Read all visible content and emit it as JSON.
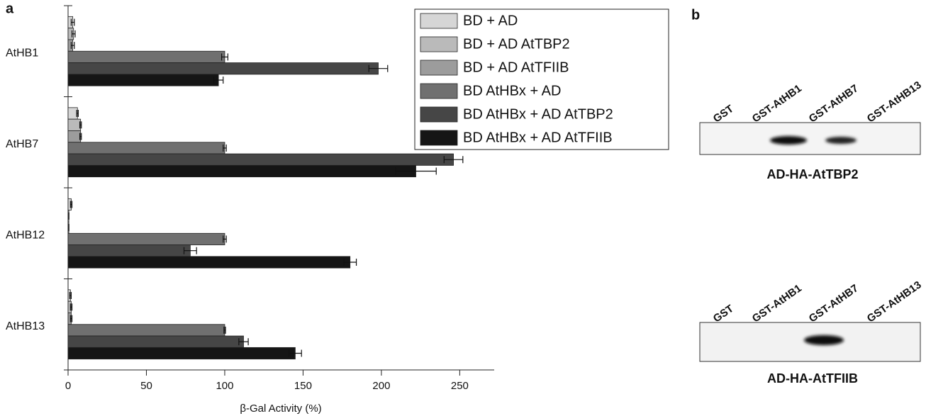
{
  "chart_data": {
    "type": "hbar",
    "panel_label": "a",
    "categories": [
      "AtHB1",
      "AtHB7",
      "AtHB12",
      "AtHB13"
    ],
    "series": [
      {
        "name": "BD + AD",
        "color": "#d6d6d6",
        "values": [
          3,
          6,
          2,
          1.5
        ],
        "errors": [
          1,
          0.5,
          0.5,
          0.5
        ]
      },
      {
        "name": "BD + AD AtTBP2",
        "color": "#bababa",
        "values": [
          3.5,
          8,
          0.5,
          2
        ],
        "errors": [
          1,
          0.5,
          0,
          0.5
        ]
      },
      {
        "name": "BD + AD AtTFIIB",
        "color": "#9c9c9c",
        "values": [
          3,
          8,
          0.5,
          2
        ],
        "errors": [
          1,
          0.5,
          0,
          0.5
        ]
      },
      {
        "name": "BD AtHBx + AD",
        "color": "#707070",
        "values": [
          100,
          100,
          100,
          100
        ],
        "errors": [
          2,
          1,
          1,
          0.5
        ]
      },
      {
        "name": "BD AtHBx + AD AtTBP2",
        "color": "#464646",
        "values": [
          198,
          246,
          78,
          112
        ],
        "errors": [
          6,
          6,
          4,
          3
        ]
      },
      {
        "name": "BD AtHBx + AD AtTFIIB",
        "color": "#151515",
        "values": [
          96,
          222,
          180,
          145
        ],
        "errors": [
          3,
          13,
          4,
          4
        ]
      }
    ],
    "xlabel": "β-Gal Activity (%)",
    "xlim": [
      0,
      272
    ],
    "xticks": [
      0,
      50,
      100,
      150,
      200,
      250
    ]
  },
  "panel_b": {
    "label": "b",
    "blots": [
      {
        "lanes": [
          "GST",
          "GST-AtHB1",
          "GST-AtHB7",
          "GST-AtHB13"
        ],
        "caption": "AD-HA-AtTBP2"
      },
      {
        "lanes": [
          "GST",
          "GST-AtHB1",
          "GST-AtHB7",
          "GST-AtHB13"
        ],
        "caption": "AD-HA-AtTFIIB"
      }
    ]
  }
}
